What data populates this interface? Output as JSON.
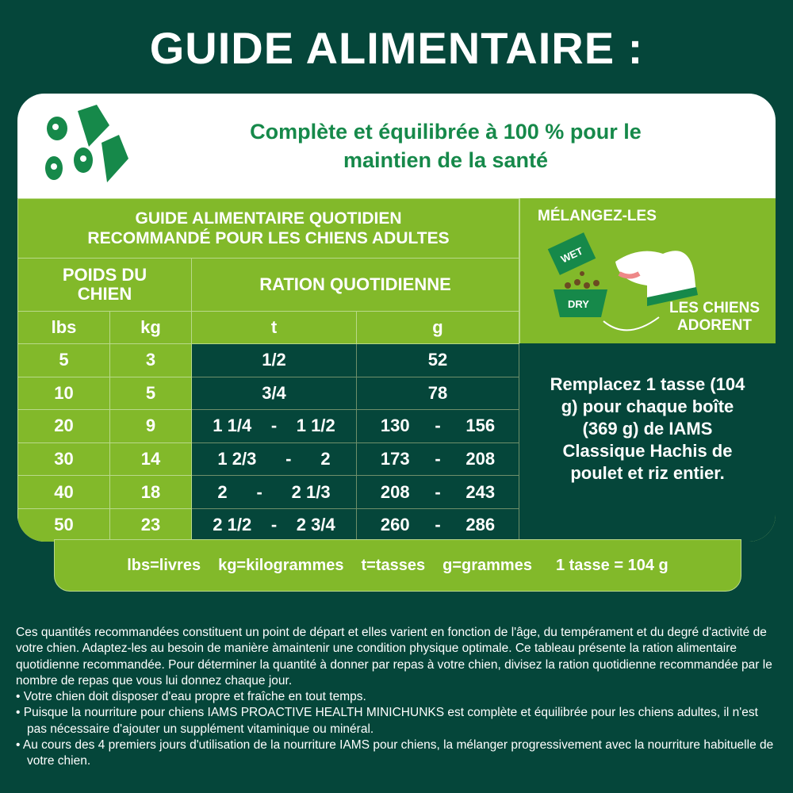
{
  "title": "GUIDE ALIMENTAIRE :",
  "subtitle": "Complète et équilibrée à 100 % pour le maintien de la santé",
  "table": {
    "title_line1": "GUIDE ALIMENTAIRE QUOTIDIEN",
    "title_line2": "RECOMMANDÉ POUR LES CHIENS ADULTES",
    "weight_header": "POIDS DU CHIEN",
    "ration_header": "RATION QUOTIDIENNE",
    "units": [
      "lbs",
      "kg",
      "t",
      "g"
    ],
    "rows": [
      {
        "lbs": "5",
        "kg": "3",
        "t": "1/2",
        "g": "52"
      },
      {
        "lbs": "10",
        "kg": "5",
        "t": "3/4",
        "g": "78"
      },
      {
        "lbs": "20",
        "kg": "9",
        "t_from": "1 1/4",
        "t_to": "1 1/2",
        "g_from": "130",
        "g_to": "156"
      },
      {
        "lbs": "30",
        "kg": "14",
        "t_from": "1 2/3",
        "t_to": "2",
        "g_from": "173",
        "g_to": "208"
      },
      {
        "lbs": "40",
        "kg": "18",
        "t_from": "2",
        "t_to": "2 1/3",
        "g_from": "208",
        "g_to": "243"
      },
      {
        "lbs": "50",
        "kg": "23",
        "t_from": "2 1/2",
        "t_to": "2 3/4",
        "g_from": "260",
        "g_to": "286"
      }
    ],
    "dash": "-"
  },
  "mix": {
    "title": "MÉLANGEZ-LES",
    "wet": "WET",
    "dry": "DRY",
    "love_line1": "LES CHIENS",
    "love_line2": "ADORENT"
  },
  "replace_text": "Remplacez 1 tasse (104 g) pour chaque boîte (369 g) de IAMS Classique Hachis de poulet et riz entier.",
  "legend": [
    "lbs=livres",
    "kg=kilogrammes",
    "t=tasses",
    "g=grammes",
    "1 tasse = 104 g"
  ],
  "notes": {
    "paragraph": "Ces quantités recommandées constituent un point de départ et elles varient en fonction de l'âge, du tempérament et du degré d'activité de votre chien. Adaptez-les au besoin de manière àmaintenir une condition physique optimale. Ce tableau présente la ration alimentaire quotidienne recommandée. Pour déterminer la quantité à donner par repas à votre chien, divisez la ration quotidienne recommandée par le nombre de repas que vous lui donnez chaque jour.",
    "bullets": [
      "• Votre chien doit disposer d'eau propre et fraîche en tout temps.",
      "• Puisque la nourriture pour chiens IAMS PROACTIVE HEALTH MINICHUNKS est complète et équilibrée pour les chiens adultes, il n'est pas nécessaire d'ajouter un supplément vitaminique ou minéral.",
      "• Au cours des 4 premiers jours d'utilisation de la nourriture IAMS pour chiens, la mélanger progressivement avec la nourriture habituelle de votre chien."
    ]
  },
  "colors": {
    "dark_green": "#05463a",
    "light_green": "#82b92a",
    "text_green": "#16894a"
  }
}
